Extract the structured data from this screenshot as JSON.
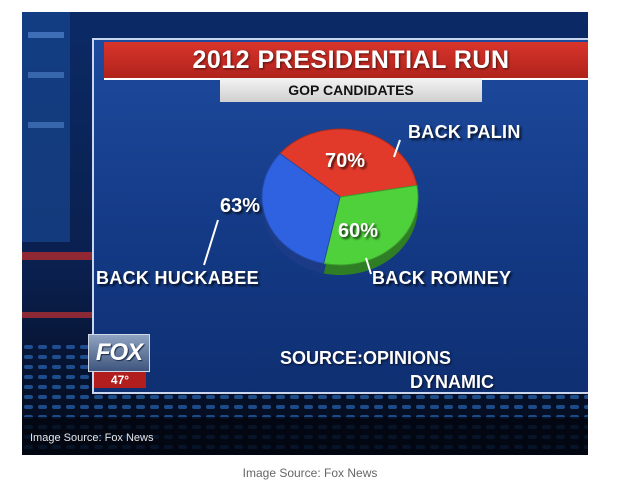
{
  "photo": {
    "title": "2012 PRESIDENTIAL RUN",
    "subtitle": "GOP CANDIDATES",
    "source_line1": "SOURCE:OPINIONS",
    "source_line2": "DYNAMIC",
    "logo_text": "FOX",
    "logo_temp": "47°",
    "caption": "Image Source: Fox News"
  },
  "page_caption": "Image Source: Fox News",
  "colors": {
    "palin": "#e23a2a",
    "romney": "#4fd13c",
    "huckabee": "#2f62e0",
    "title_bar": "#c62a22",
    "panel": "#1a4494"
  },
  "chart_data": {
    "type": "pie",
    "title": "2012 PRESIDENTIAL RUN",
    "subtitle": "GOP CANDIDATES",
    "slices": [
      {
        "label": "BACK PALIN",
        "value": 70,
        "display": "70%",
        "color": "#e23a2a"
      },
      {
        "label": "BACK ROMNEY",
        "value": 60,
        "display": "60%",
        "color": "#4fd13c"
      },
      {
        "label": "BACK HUCKABEE",
        "value": 63,
        "display": "63%",
        "color": "#2f62e0"
      }
    ],
    "source": "SOURCE:OPINIONS DYNAMIC"
  }
}
